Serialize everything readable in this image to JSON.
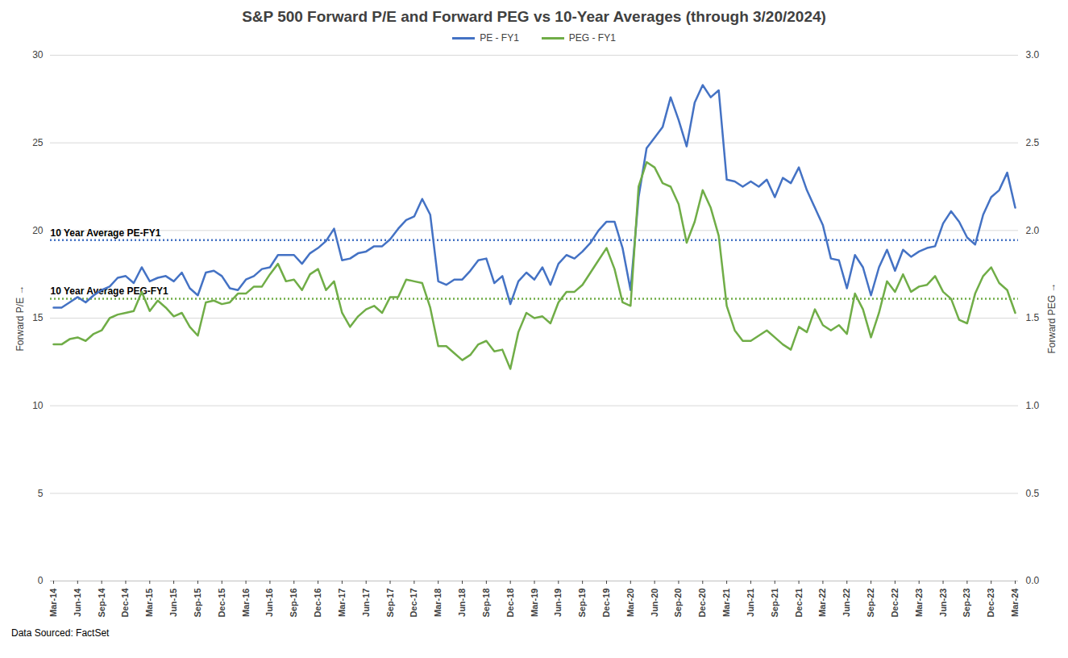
{
  "chart_data": {
    "type": "line",
    "title": "S&P 500 Forward P/E and Forward PEG vs 10-Year Averages (through 3/20/2024)",
    "y_label": "Forward P/E",
    "y2_label": "Forward PEG",
    "caption": "Data Sourced: FactSet",
    "legend": "top",
    "grid": true,
    "categories": [
      "Mar-14",
      null,
      null,
      "Jun-14",
      null,
      null,
      "Sep-14",
      null,
      null,
      "Dec-14",
      null,
      null,
      "Mar-15",
      null,
      null,
      "Jun-15",
      null,
      null,
      "Sep-15",
      null,
      null,
      "Dec-15",
      null,
      null,
      "Mar-16",
      null,
      null,
      "Jun-16",
      null,
      null,
      "Sep-16",
      null,
      null,
      "Dec-16",
      null,
      null,
      "Mar-17",
      null,
      null,
      "Jun-17",
      null,
      null,
      "Sep-17",
      null,
      null,
      "Dec-17",
      null,
      null,
      "Mar-18",
      null,
      null,
      "Jun-18",
      null,
      null,
      "Sep-18",
      null,
      null,
      "Dec-18",
      null,
      null,
      "Mar-19",
      null,
      null,
      "Jun-19",
      null,
      null,
      "Sep-19",
      null,
      null,
      "Dec-19",
      null,
      null,
      "Mar-20",
      null,
      null,
      "Jun-20",
      null,
      null,
      "Sep-20",
      null,
      null,
      "Dec-20",
      null,
      null,
      "Mar-21",
      null,
      null,
      "Jun-21",
      null,
      null,
      "Sep-21",
      null,
      null,
      "Dec-21",
      null,
      null,
      "Mar-22",
      null,
      null,
      "Jun-22",
      null,
      null,
      "Sep-22",
      null,
      null,
      "Dec-22",
      null,
      null,
      "Mar-23",
      null,
      null,
      "Jun-23",
      null,
      null,
      "Sep-23",
      null,
      null,
      "Dec-23",
      null,
      null,
      "Mar-24"
    ],
    "series": [
      {
        "name": "PE - FY1",
        "color": "#4472c4",
        "axis": "y",
        "line_style": "solid",
        "values": [
          15.6,
          15.6,
          15.9,
          16.2,
          15.9,
          16.3,
          16.6,
          16.8,
          17.3,
          17.4,
          17.0,
          17.9,
          17.1,
          17.3,
          17.4,
          17.1,
          17.6,
          16.7,
          16.3,
          17.6,
          17.7,
          17.4,
          16.7,
          16.6,
          17.2,
          17.4,
          17.8,
          17.9,
          18.6,
          18.6,
          18.6,
          18.1,
          18.7,
          19.0,
          19.4,
          20.1,
          18.3,
          18.4,
          18.7,
          18.8,
          19.1,
          19.1,
          19.5,
          20.1,
          20.6,
          20.8,
          21.8,
          20.9,
          17.1,
          16.9,
          17.2,
          17.2,
          17.7,
          18.3,
          18.4,
          17.0,
          17.4,
          15.8,
          17.1,
          17.6,
          17.2,
          17.9,
          16.9,
          18.1,
          18.6,
          18.4,
          18.8,
          19.3,
          20.0,
          20.5,
          20.5,
          19.0,
          16.6,
          21.9,
          24.7,
          25.3,
          25.9,
          27.6,
          26.3,
          24.8,
          27.3,
          28.3,
          27.6,
          28.0,
          22.9,
          22.8,
          22.5,
          22.8,
          22.5,
          22.9,
          21.9,
          23.0,
          22.7,
          23.6,
          22.3,
          21.3,
          20.3,
          18.4,
          18.3,
          16.7,
          18.6,
          17.9,
          16.3,
          17.9,
          18.9,
          17.7,
          18.9,
          18.5,
          18.8,
          19.0,
          19.1,
          20.4,
          21.1,
          20.5,
          19.6,
          19.2,
          20.9,
          21.9,
          22.3,
          23.3,
          21.3
        ]
      },
      {
        "name": "PEG - FY1",
        "color": "#70ad47",
        "axis": "y2",
        "line_style": "solid",
        "values": [
          1.35,
          1.35,
          1.38,
          1.39,
          1.37,
          1.41,
          1.43,
          1.5,
          1.52,
          1.53,
          1.54,
          1.65,
          1.54,
          1.6,
          1.56,
          1.51,
          1.53,
          1.45,
          1.4,
          1.59,
          1.6,
          1.58,
          1.59,
          1.64,
          1.64,
          1.68,
          1.68,
          1.75,
          1.81,
          1.71,
          1.72,
          1.66,
          1.75,
          1.78,
          1.66,
          1.71,
          1.53,
          1.45,
          1.51,
          1.55,
          1.57,
          1.53,
          1.62,
          1.62,
          1.72,
          1.71,
          1.7,
          1.56,
          1.34,
          1.34,
          1.3,
          1.26,
          1.29,
          1.35,
          1.37,
          1.31,
          1.32,
          1.21,
          1.42,
          1.53,
          1.5,
          1.51,
          1.47,
          1.59,
          1.65,
          1.65,
          1.69,
          1.76,
          1.83,
          1.9,
          1.78,
          1.59,
          1.57,
          2.25,
          2.39,
          2.36,
          2.27,
          2.25,
          2.15,
          1.93,
          2.05,
          2.23,
          2.13,
          1.97,
          1.57,
          1.43,
          1.37,
          1.37,
          1.4,
          1.43,
          1.39,
          1.35,
          1.32,
          1.45,
          1.42,
          1.55,
          1.46,
          1.43,
          1.46,
          1.41,
          1.64,
          1.55,
          1.39,
          1.53,
          1.71,
          1.65,
          1.75,
          1.65,
          1.68,
          1.69,
          1.74,
          1.65,
          1.61,
          1.49,
          1.47,
          1.64,
          1.74,
          1.79,
          1.7,
          1.66,
          1.53
        ]
      }
    ],
    "reference_lines": [
      {
        "label": "10 Year Average PE-FY1",
        "value": 19.45,
        "color": "#4472c4",
        "line_style": "dotted",
        "axis": "y"
      },
      {
        "label": "10 Year Average PEG-FY1",
        "value": 1.61,
        "color": "#70ad47",
        "line_style": "dotted",
        "axis": "y2"
      }
    ],
    "ylim": [
      0,
      30
    ],
    "yticks": [
      0,
      5,
      10,
      15,
      20,
      25,
      30
    ],
    "y2lim": [
      0,
      3
    ],
    "y2ticks": [
      {
        "value": 0,
        "label": "0.0"
      },
      0.5,
      {
        "value": 1,
        "label": "1.0"
      },
      1.5,
      {
        "value": 2,
        "label": "2.0"
      },
      2.5,
      {
        "value": 3,
        "label": "3.0"
      }
    ]
  }
}
